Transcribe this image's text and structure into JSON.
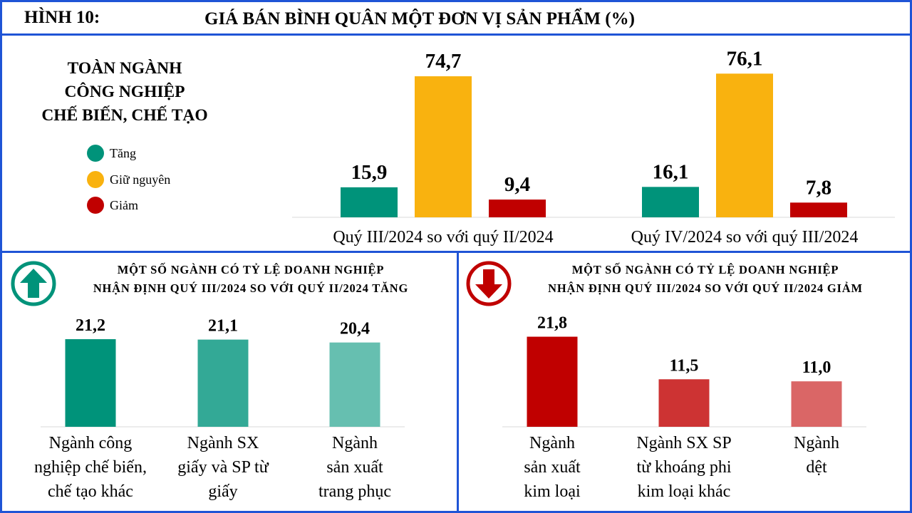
{
  "header": {
    "figure_label": "HÌNH 10:",
    "title": "GIÁ BÁN BÌNH QUÂN MỘT ĐƠN VỊ SẢN PHẨM (%)"
  },
  "top_panel": {
    "side_title_lines": [
      "TOÀN NGÀNH",
      "CÔNG NGHIỆP",
      "CHẾ BIẾN, CHẾ TẠO"
    ],
    "legend": [
      {
        "label": "Tăng",
        "color": "#00937a"
      },
      {
        "label": "Giữ nguyên",
        "color": "#f9b20f"
      },
      {
        "label": "Giảm",
        "color": "#c00000"
      }
    ]
  },
  "left_panel": {
    "title_lines": [
      "MỘT SỐ NGÀNH CÓ TỶ LỆ DOANH NGHIỆP",
      "NHẬN ĐỊNH QUÝ III/2024 SO VỚI QUÝ II/2024 TĂNG"
    ],
    "icon": "up-arrow-icon",
    "icon_color": "#00937a"
  },
  "right_panel": {
    "title_lines": [
      "MỘT SỐ NGÀNH CÓ TỶ LỆ DOANH NGHIỆP",
      "NHẬN ĐỊNH QUÝ III/2024 SO VỚI QUÝ II/2024 GIẢM"
    ],
    "icon": "down-arrow-icon",
    "icon_color": "#c00000"
  },
  "chart_data": [
    {
      "type": "bar",
      "categories": [
        "Quý III/2024 so với quý II/2024",
        "Quý IV/2024 so với quý III/2024"
      ],
      "series": [
        {
          "name": "Tăng",
          "values": [
            15.9,
            16.1
          ],
          "labels": [
            "15,9",
            "16,1"
          ],
          "color": "#00937a"
        },
        {
          "name": "Giữ nguyên",
          "values": [
            74.7,
            76.1
          ],
          "labels": [
            "74,7",
            "76,1"
          ],
          "color": "#f9b20f"
        },
        {
          "name": "Giảm",
          "values": [
            9.4,
            7.8
          ],
          "labels": [
            "9,4",
            "7,8"
          ],
          "color": "#c00000"
        }
      ],
      "ylim": [
        0,
        100
      ],
      "legend": "left",
      "grid": false
    },
    {
      "type": "bar",
      "categories": [
        [
          "Ngành công",
          "nghiệp chế biến,",
          "chế tạo khác"
        ],
        [
          "Ngành SX",
          "giấy và SP từ",
          "giấy"
        ],
        [
          "Ngành",
          "sản xuất",
          "trang phục"
        ]
      ],
      "values": [
        21.2,
        21.1,
        20.4
      ],
      "labels": [
        "21,2",
        "21,1",
        "20,4"
      ],
      "colors": [
        "#00937a",
        "#33a996",
        "#66bfb0"
      ],
      "ylim": [
        0,
        30
      ],
      "grid": false
    },
    {
      "type": "bar",
      "categories": [
        [
          "Ngành",
          "sản xuất",
          "kim loại"
        ],
        [
          "Ngành SX SP",
          "từ khoáng phi",
          "kim loại khác"
        ],
        [
          "Ngành",
          "dệt"
        ]
      ],
      "values": [
        21.8,
        11.5,
        11.0
      ],
      "labels": [
        "21,8",
        "11,5",
        "11,0"
      ],
      "colors": [
        "#c00000",
        "#cd3333",
        "#da6666"
      ],
      "ylim": [
        0,
        30
      ],
      "grid": false
    }
  ]
}
